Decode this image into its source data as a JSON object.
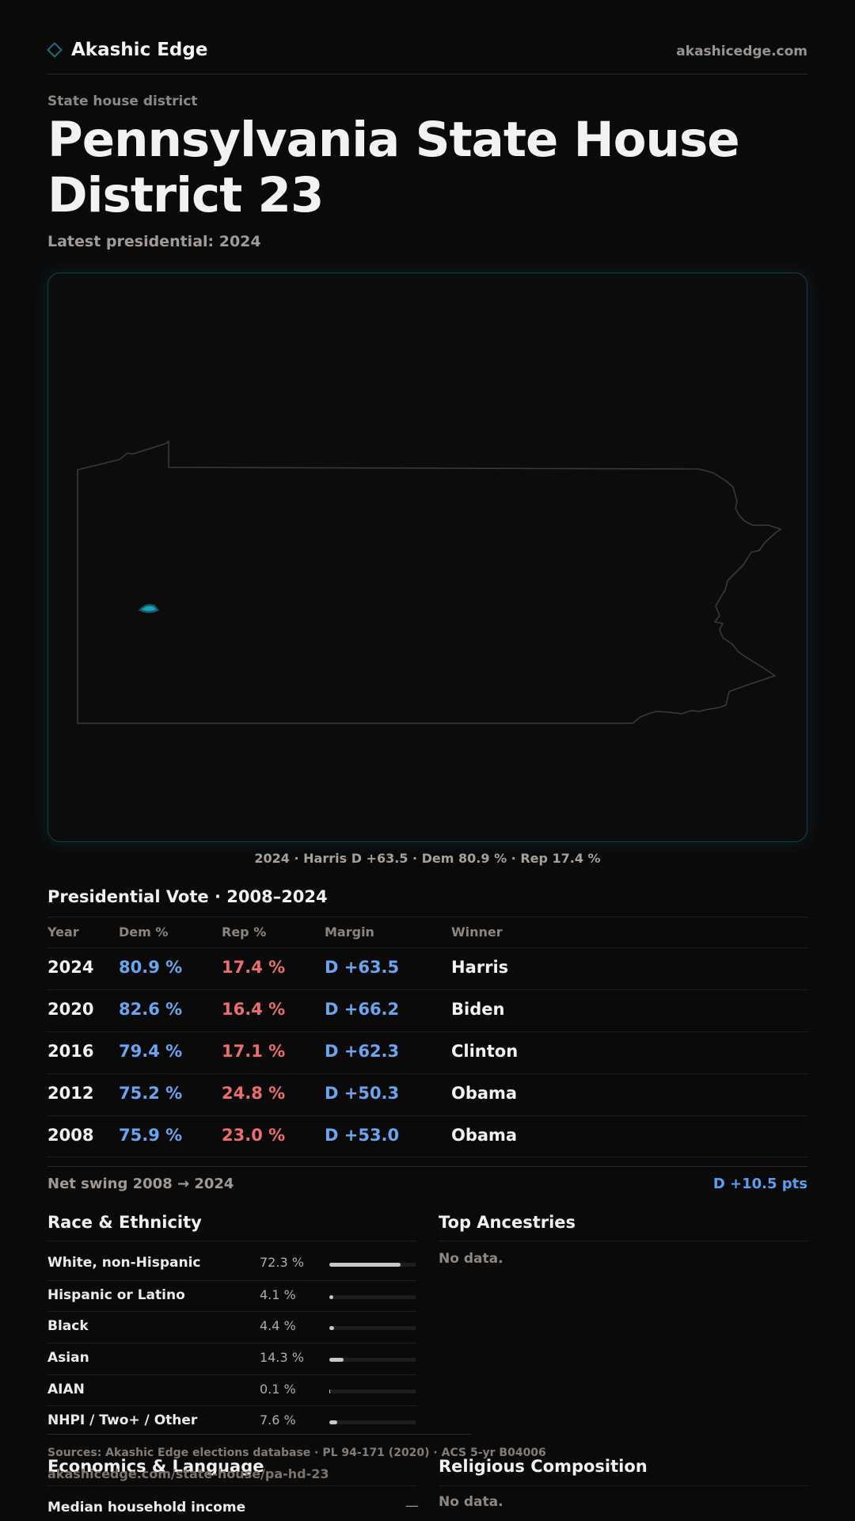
{
  "header": {
    "brand_name": "Akashic Edge",
    "site_url": "akashicedge.com"
  },
  "page": {
    "eyebrow": "State house district",
    "title": "Pennsylvania State House District 23",
    "subtitle": "Latest presidential: 2024"
  },
  "map": {
    "caption": "2024 · Harris D +63.5 · Dem 80.9 % · Rep 17.4 %",
    "colors": {
      "outline": "#3a383b",
      "district_fill": "#1aa3b9",
      "frame_border": "#154048"
    }
  },
  "presidential": {
    "title": "Presidential Vote · 2008–2024",
    "columns": {
      "year": "Year",
      "dem": "Dem %",
      "rep": "Rep %",
      "margin": "Margin",
      "winner": "Winner"
    },
    "rows": [
      {
        "year": "2024",
        "dem": "80.9 %",
        "rep": "17.4 %",
        "margin": "D +63.5",
        "winner": "Harris"
      },
      {
        "year": "2020",
        "dem": "82.6 %",
        "rep": "16.4 %",
        "margin": "D +66.2",
        "winner": "Biden"
      },
      {
        "year": "2016",
        "dem": "79.4 %",
        "rep": "17.1 %",
        "margin": "D +62.3",
        "winner": "Clinton"
      },
      {
        "year": "2012",
        "dem": "75.2 %",
        "rep": "24.8 %",
        "margin": "D +50.3",
        "winner": "Obama"
      },
      {
        "year": "2008",
        "dem": "75.9 %",
        "rep": "23.0 %",
        "margin": "D +53.0",
        "winner": "Obama"
      }
    ],
    "swing_label": "Net swing 2008 → 2024",
    "swing_value": "D +10.5 pts",
    "colors": {
      "dem": "#6aa5ef",
      "rep": "#ea6e6e"
    }
  },
  "race": {
    "title": "Race & Ethnicity",
    "rows": [
      {
        "label": "White, non-Hispanic",
        "pct": "72.3 %",
        "share": 0.723
      },
      {
        "label": "Hispanic or Latino",
        "pct": "4.1 %",
        "share": 0.041
      },
      {
        "label": "Black",
        "pct": "4.4 %",
        "share": 0.044
      },
      {
        "label": "Asian",
        "pct": "14.3 %",
        "share": 0.143
      },
      {
        "label": "AIAN",
        "pct": "0.1 %",
        "share": 0.001
      },
      {
        "label": "NHPI / Two+ / Other",
        "pct": "7.6 %",
        "share": 0.076
      }
    ]
  },
  "ancestry": {
    "title": "Top Ancestries",
    "empty": "No data."
  },
  "economics": {
    "title": "Economics & Language",
    "rows": [
      {
        "label": "Median household income",
        "value": "—"
      }
    ]
  },
  "religion": {
    "title": "Religious Composition",
    "empty": "No data."
  },
  "footer": {
    "sources": "Sources: Akashic Edge elections database · PL 94-171 (2020) · ACS 5-yr B04006",
    "url": "akashicedge.com/state-house/pa-hd-23"
  }
}
